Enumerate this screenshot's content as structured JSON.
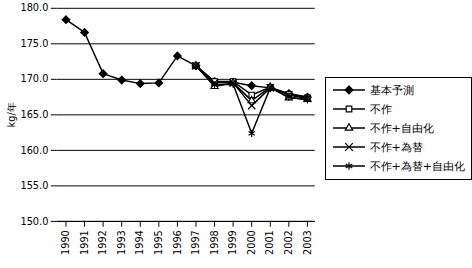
{
  "chart_data": {
    "type": "line",
    "y_label": "kg/年",
    "categories": [
      "1990",
      "1991",
      "1992",
      "1993",
      "1994",
      "1995",
      "1996",
      "1997",
      "1998",
      "1999",
      "2000",
      "2001",
      "2002",
      "2003"
    ],
    "series": [
      {
        "name": "基本予測",
        "color": "#000000",
        "marker": "diamond",
        "values": [
          178.4,
          176.6,
          170.8,
          169.9,
          169.4,
          169.5,
          173.3,
          171.9,
          169.7,
          169.6,
          169.1,
          168.8,
          168.0,
          167.5
        ]
      },
      {
        "name": "不作",
        "color": "#000000",
        "marker": "square",
        "values": [
          null,
          null,
          null,
          null,
          null,
          null,
          null,
          171.9,
          169.7,
          169.7,
          167.8,
          168.9,
          167.9,
          167.4
        ]
      },
      {
        "name": "不作+自由化",
        "color": "#000000",
        "marker": "triangle",
        "values": [
          null,
          null,
          null,
          null,
          null,
          null,
          null,
          171.9,
          169.0,
          169.5,
          167.0,
          168.9,
          167.4,
          167.2
        ]
      },
      {
        "name": "不作+為替",
        "color": "#000000",
        "marker": "times",
        "values": [
          null,
          null,
          null,
          null,
          null,
          null,
          null,
          171.9,
          169.5,
          169.5,
          166.3,
          168.8,
          167.8,
          167.3
        ]
      },
      {
        "name": "不作+為替+自由化",
        "color": "#000000",
        "marker": "asterisk",
        "values": [
          null,
          null,
          null,
          null,
          null,
          null,
          null,
          171.9,
          169.2,
          169.3,
          162.4,
          168.8,
          167.5,
          167.1
        ]
      }
    ],
    "ylim": [
      150,
      180
    ],
    "yticks": [
      {
        "value": 150,
        "label": "150.0"
      },
      {
        "value": 155,
        "label": "155.0"
      },
      {
        "value": 160,
        "label": "160.0"
      },
      {
        "value": 165,
        "label": "165.0"
      },
      {
        "value": 170,
        "label": "170.0"
      },
      {
        "value": 175,
        "label": "175.0"
      },
      {
        "value": 180,
        "label": "180.0"
      }
    ],
    "grid": true,
    "legend": "right"
  }
}
